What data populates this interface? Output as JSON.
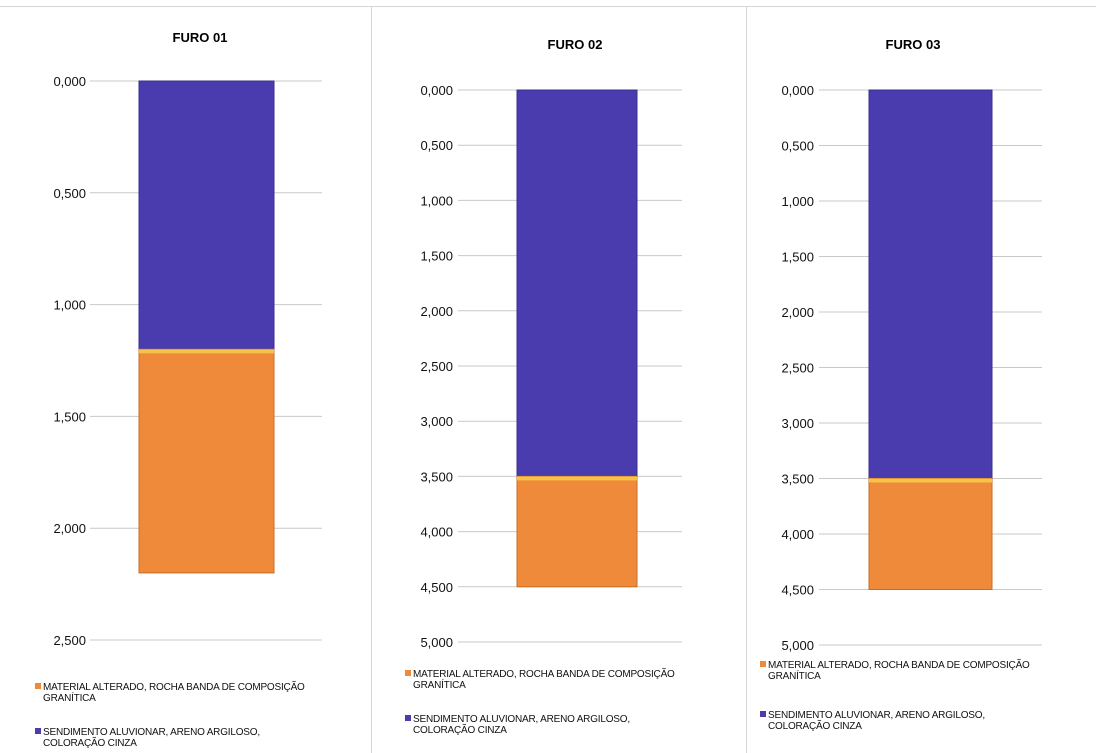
{
  "chart_data": [
    {
      "type": "bar",
      "stacked": true,
      "orientation": "vertical",
      "title": "FURO 01",
      "categories": [
        "FURO 01"
      ],
      "y_axis": {
        "inverted": true,
        "ylim": [
          0,
          2.5
        ],
        "ticks": [
          "0,000",
          "0,500",
          "1,000",
          "1,500",
          "2,000",
          "2,500"
        ]
      },
      "series": [
        {
          "name": "SENDIMENTO ALUVIONAR, ARENO ARGILOSO, COLORAÇÃO CINZA",
          "values": [
            1.2
          ],
          "color": "#4a3cae"
        },
        {
          "name": "MATERIAL ALTERADO, ROCHA BANDA DE COMPOSIÇÃO GRANÍTICA",
          "values": [
            1.0
          ],
          "color": "#ef8a3a"
        }
      ],
      "grid": "horizontal",
      "legend": "bottom"
    },
    {
      "type": "bar",
      "stacked": true,
      "orientation": "vertical",
      "title": "FURO 02",
      "categories": [
        "FURO 02"
      ],
      "y_axis": {
        "inverted": true,
        "ylim": [
          0,
          5
        ],
        "ticks": [
          "0,000",
          "0,500",
          "1,000",
          "1,500",
          "2,000",
          "2,500",
          "3,000",
          "3,500",
          "4,000",
          "4,500",
          "5,000"
        ]
      },
      "series": [
        {
          "name": "SENDIMENTO ALUVIONAR, ARENO ARGILOSO, COLORAÇÃO CINZA",
          "values": [
            3.5
          ],
          "color": "#4a3cae"
        },
        {
          "name": "MATERIAL ALTERADO, ROCHA BANDA DE COMPOSIÇÃO GRANÍTICA",
          "values": [
            1.0
          ],
          "color": "#ef8a3a"
        }
      ],
      "grid": "horizontal",
      "legend": "bottom"
    },
    {
      "type": "bar",
      "stacked": true,
      "orientation": "vertical",
      "title": "FURO 03",
      "categories": [
        "FURO 03"
      ],
      "y_axis": {
        "inverted": true,
        "ylim": [
          0,
          5
        ],
        "ticks": [
          "0,000",
          "0,500",
          "1,000",
          "1,500",
          "2,000",
          "2,500",
          "3,000",
          "3,500",
          "4,000",
          "4,500",
          "5,000"
        ]
      },
      "series": [
        {
          "name": "SENDIMENTO ALUVIONAR, ARENO ARGILOSO, COLORAÇÃO CINZA",
          "values": [
            3.5
          ],
          "color": "#4a3cae"
        },
        {
          "name": "MATERIAL ALTERADO, ROCHA BANDA DE COMPOSIÇÃO GRANÍTICA",
          "values": [
            1.0
          ],
          "color": "#ef8a3a"
        }
      ],
      "grid": "horizontal",
      "legend": "bottom"
    }
  ],
  "legend_text": {
    "material": [
      "MATERIAL ALTERADO, ROCHA BANDA DE COMPOSIÇÃO",
      "GRANÍTICA"
    ],
    "sedimento": [
      "SENDIMENTO ALUVIONAR, ARENO ARGILOSO,",
      "COLORAÇÃO CINZA"
    ]
  }
}
